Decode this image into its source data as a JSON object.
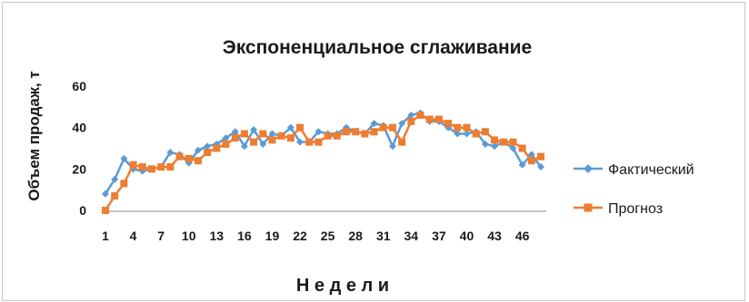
{
  "chart_data": {
    "type": "line",
    "title": "Экспоненциальное сглаживание",
    "xlabel": "Н е д е л и",
    "ylabel": "Объем продаж, т",
    "ylim": [
      0,
      60
    ],
    "yticks": [
      0,
      20,
      40,
      60
    ],
    "x": [
      1,
      2,
      3,
      4,
      5,
      6,
      7,
      8,
      9,
      10,
      11,
      12,
      13,
      14,
      15,
      16,
      17,
      18,
      19,
      20,
      21,
      22,
      23,
      24,
      25,
      26,
      27,
      28,
      29,
      30,
      31,
      32,
      33,
      34,
      35,
      36,
      37,
      38,
      39,
      40,
      41,
      42,
      43,
      44,
      45,
      46,
      47,
      48
    ],
    "xtick_labels": [
      "1",
      "4",
      "7",
      "10",
      "13",
      "16",
      "19",
      "22",
      "25",
      "28",
      "31",
      "34",
      "37",
      "40",
      "43",
      "46"
    ],
    "grid": false,
    "legend_position": "right",
    "series": [
      {
        "name": "Фактический",
        "color": "#5b9bd5",
        "marker": "diamond",
        "values": [
          8,
          15,
          25,
          20,
          19,
          20,
          21,
          28,
          27,
          23,
          29,
          31,
          32,
          35,
          38,
          31,
          39,
          32,
          37,
          36,
          40,
          33,
          33,
          38,
          37,
          37,
          40,
          38,
          37,
          42,
          41,
          31,
          42,
          46,
          47,
          43,
          43,
          40,
          37,
          37,
          38,
          32,
          31,
          33,
          30,
          22,
          27,
          21
        ]
      },
      {
        "name": "Прогноз",
        "color": "#ed7d31",
        "marker": "square",
        "values": [
          0,
          7,
          13,
          22,
          21,
          20,
          21,
          21,
          26,
          25,
          24,
          28,
          30,
          32,
          35,
          37,
          33,
          37,
          34,
          36,
          35,
          40,
          33,
          33,
          36,
          36,
          38,
          38,
          37,
          38,
          40,
          40,
          33,
          43,
          46,
          44,
          44,
          42,
          40,
          40,
          37,
          38,
          34,
          33,
          33,
          30,
          24,
          26
        ]
      }
    ]
  }
}
